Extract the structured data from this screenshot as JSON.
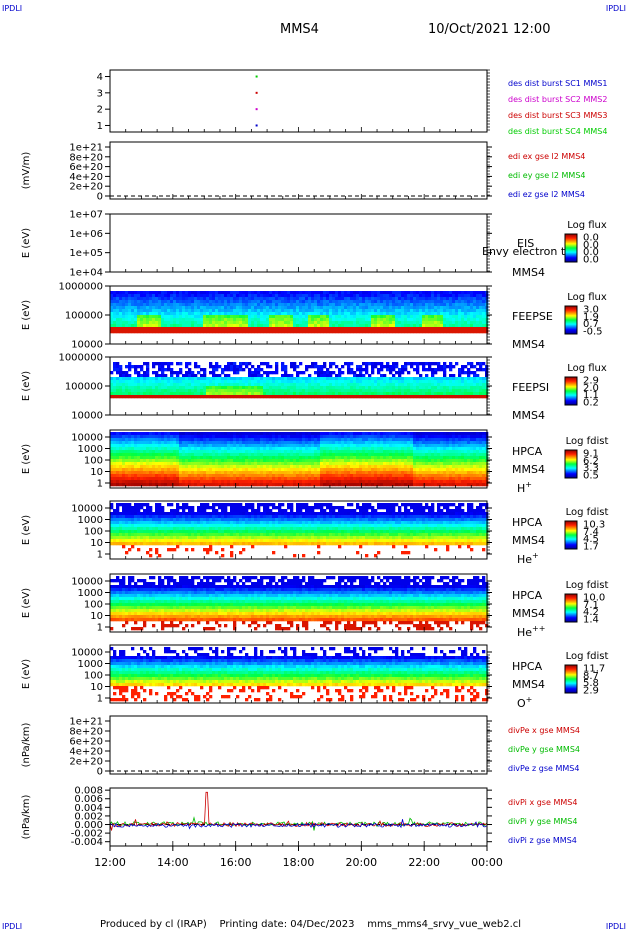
{
  "corner_labels": {
    "top_left": "IPDLI",
    "top_right": "IPDLI",
    "bottom_left": "IPDLI",
    "bottom_right": "IPDLI"
  },
  "header": {
    "spacecraft": "MMS4",
    "date_time": "10/Oct/2021 12:00"
  },
  "footer": {
    "produced_by": "Produced by cl (IRAP)",
    "printing_date": "Printing date: 04/Dec/2023",
    "file": "mms_mms4_srvy_vue_web2.cl"
  },
  "colors": {
    "mms1": "#0000cc",
    "mms2": "#cc00cc",
    "mms3": "#cc0000",
    "mms4": "#00cc00",
    "x": "#cc0000",
    "y": "#00bb00",
    "z": "#0000cc"
  },
  "chart_data": [
    {
      "id": "des-burst",
      "type": "scatter",
      "ylim": [
        0.6,
        4.4
      ],
      "y_ticks": [
        "1",
        "2",
        "3",
        "4"
      ],
      "legend": [
        "des dist burst SC1 MMS1",
        "des dist burst SC2 MMS2",
        "des dist burst SC3 MMS3",
        "des dist burst SC4 MMS4"
      ],
      "points": [
        {
          "x": "16:40",
          "y": 1,
          "sc": "mms1"
        },
        {
          "x": "16:40",
          "y": 2,
          "sc": "mms2"
        },
        {
          "x": "16:40",
          "y": 3,
          "sc": "mms3"
        },
        {
          "x": "16:40",
          "y": 4,
          "sc": "mms4"
        }
      ]
    },
    {
      "id": "edi-e",
      "type": "line",
      "ylabel": "(mV/m)",
      "y_ticks": [
        "1e+21",
        "8e+20",
        "6e+20",
        "4e+20",
        "2e+20",
        "0"
      ],
      "legend": [
        "edi ex gse l2 MMS4",
        "edi ey gse l2 MMS4",
        "edi ez gse l2 MMS4"
      ]
    },
    {
      "id": "eis",
      "type": "heatmap",
      "ylabel": "E (eV)",
      "y_ticks": [
        "1e+07",
        "1e+06",
        "1e+05",
        "1e+04"
      ],
      "instrument": "EIS",
      "overlay_text": "Envy electron to",
      "spacecraft": "MMS4",
      "colorbar_title": "Log flux",
      "colorbar_ticks": [
        "0.0",
        "0.0",
        "0.0",
        "0.0"
      ]
    },
    {
      "id": "feepse",
      "type": "heatmap",
      "ylabel": "E (eV)",
      "y_ticks": [
        "1000000",
        "100000",
        "10000"
      ],
      "instrument": "FEEPSE",
      "spacecraft": "MMS4",
      "colorbar_title": "Log flux",
      "colorbar_ticks": [
        "3.0",
        "1.9",
        "0.7",
        "-0.5"
      ]
    },
    {
      "id": "feepsi",
      "type": "heatmap",
      "ylabel": "E (eV)",
      "y_ticks": [
        "1000000",
        "100000",
        "10000"
      ],
      "instrument": "FEEPSI",
      "spacecraft": "MMS4",
      "colorbar_title": "Log flux",
      "colorbar_ticks": [
        "2.9",
        "2.0",
        "1.1",
        "0.2"
      ]
    },
    {
      "id": "hpca-h",
      "type": "heatmap",
      "ylabel": "E (eV)",
      "y_ticks": [
        "10000",
        "1000",
        "100",
        "10",
        "1"
      ],
      "instrument": "HPCA",
      "spacecraft": "MMS4",
      "species": "H",
      "species_charge": "+",
      "colorbar_title": "Log fdist",
      "colorbar_ticks": [
        "9.1",
        "6.2",
        "3.3",
        "0.5"
      ]
    },
    {
      "id": "hpca-he",
      "type": "heatmap",
      "ylabel": "E (eV)",
      "y_ticks": [
        "10000",
        "1000",
        "100",
        "10",
        "1"
      ],
      "instrument": "HPCA",
      "spacecraft": "MMS4",
      "species": "He",
      "species_charge": "+",
      "colorbar_title": "Log fdist",
      "colorbar_ticks": [
        "10.3",
        "7.4",
        "4.5",
        "1.7"
      ]
    },
    {
      "id": "hpca-hepp",
      "type": "heatmap",
      "ylabel": "E (eV)",
      "y_ticks": [
        "10000",
        "1000",
        "100",
        "10",
        "1"
      ],
      "instrument": "HPCA",
      "spacecraft": "MMS4",
      "species": "He",
      "species_charge": "++",
      "colorbar_title": "Log fdist",
      "colorbar_ticks": [
        "10.0",
        "7.1",
        "4.2",
        "1.4"
      ]
    },
    {
      "id": "hpca-o",
      "type": "heatmap",
      "ylabel": "E (eV)",
      "y_ticks": [
        "10000",
        "1000",
        "100",
        "10",
        "1"
      ],
      "instrument": "HPCA",
      "spacecraft": "MMS4",
      "species": "O",
      "species_charge": "+",
      "colorbar_title": "Log fdist",
      "colorbar_ticks": [
        "11.7",
        "8.7",
        "5.8",
        "2.9"
      ]
    },
    {
      "id": "divpe",
      "type": "line",
      "ylabel": "(nPa/km)",
      "y_ticks": [
        "1e+21",
        "8e+20",
        "6e+20",
        "4e+20",
        "2e+20",
        "0"
      ],
      "legend": [
        "divPe x gse MMS4",
        "divPe y gse MMS4",
        "divPe z gse MMS4"
      ]
    },
    {
      "id": "divpi",
      "type": "line",
      "ylabel": "(nPa/km)",
      "y_ticks": [
        "0.008",
        "0.006",
        "0.004",
        "0.002",
        "0.000",
        "-0.002",
        "-0.004"
      ],
      "ylim": [
        -0.005,
        0.0085
      ],
      "legend": [
        "divPi x gse MMS4",
        "divPi y gse MMS4",
        "divPi z gse MMS4"
      ],
      "spike": {
        "x": "15:05",
        "y": 0.0075
      }
    }
  ],
  "x_axis": {
    "ticks": [
      "12:00",
      "14:00",
      "16:00",
      "18:00",
      "20:00",
      "22:00",
      "00:00"
    ]
  }
}
